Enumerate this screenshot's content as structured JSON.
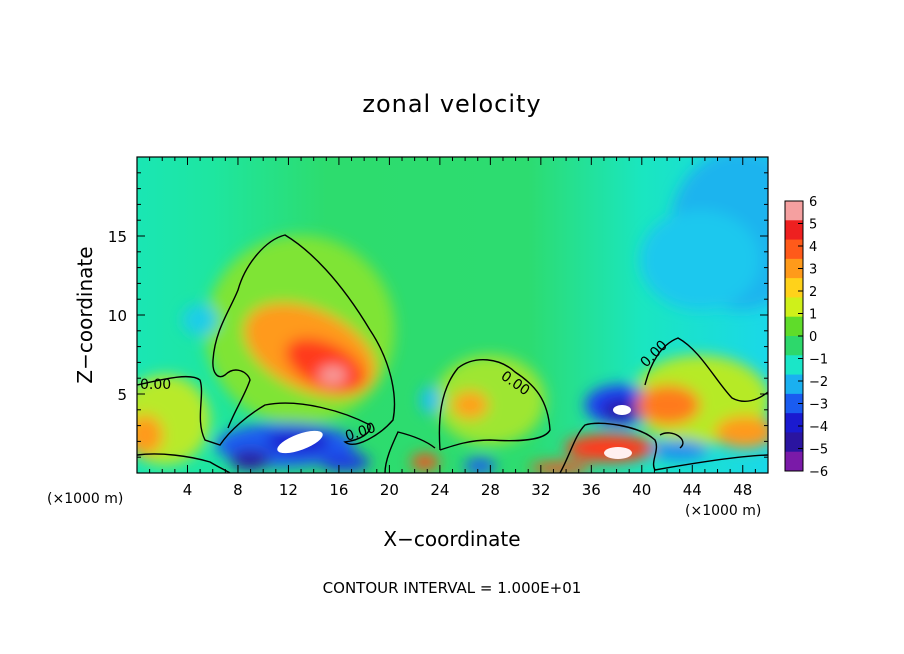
{
  "chart_data": {
    "type": "heatmap",
    "title": "zonal velocity",
    "xlabel": "X−coordinate",
    "ylabel": "Z−coordinate",
    "x_unit_left": "(×1000 m)",
    "x_unit_right": "(×1000 m)",
    "footer": "CONTOUR INTERVAL = 1.000E+01",
    "xlim": [
      0,
      50
    ],
    "ylim": [
      0,
      20
    ],
    "x_ticks": [
      4,
      8,
      12,
      16,
      20,
      24,
      28,
      32,
      36,
      40,
      44,
      48
    ],
    "y_ticks": [
      5,
      10,
      15
    ],
    "colorbar": {
      "ticks": [
        "6",
        "5",
        "4",
        "3",
        "2",
        "1",
        "0",
        "−1",
        "−2",
        "−3",
        "−4",
        "−5",
        "−6"
      ],
      "colors": [
        "#f5a0a0",
        "#ee2020",
        "#ff5a1a",
        "#ff9a1a",
        "#ffd21a",
        "#cff01a",
        "#5fdc2a",
        "#2dd86b",
        "#1ae6c8",
        "#1ab0f0",
        "#1a5cf0",
        "#1a1ad0",
        "#2a14a0",
        "#7a1aa8"
      ]
    },
    "contour_labels": [
      "0.00",
      "0.00",
      "0.00",
      "0.00"
    ],
    "features": [
      {
        "x": 14.5,
        "z": 7.5,
        "value": 5.5
      },
      {
        "x": 12.5,
        "z": 9.5,
        "value": 3.0
      },
      {
        "x": 12.5,
        "z": 2.0,
        "value": -6.5
      },
      {
        "x": 9.5,
        "z": 1.5,
        "value": -4.5
      },
      {
        "x": 17.5,
        "z": 1.0,
        "value": -3.5
      },
      {
        "x": 26.0,
        "z": 4.2,
        "value": 3.0
      },
      {
        "x": 27.0,
        "z": 6.0,
        "value": 1.0
      },
      {
        "x": 38.5,
        "z": 3.8,
        "value": -6.5
      },
      {
        "x": 38.5,
        "z": 1.5,
        "value": 6.0
      },
      {
        "x": 36.5,
        "z": 2.8,
        "value": 5.0
      },
      {
        "x": 43.0,
        "z": 4.5,
        "value": 3.5
      },
      {
        "x": 47.5,
        "z": 2.8,
        "value": 3.0
      },
      {
        "x": 22.5,
        "z": 0.6,
        "value": 4.0
      },
      {
        "x": 42.0,
        "z": 1.5,
        "value": -3.0
      },
      {
        "x": 24.5,
        "z": 4.8,
        "value": -2.0
      },
      {
        "x": 5.0,
        "z": 9.0,
        "value": -2.0
      },
      {
        "x": 48.0,
        "z": 17.0,
        "value": -2.6
      },
      {
        "x": 46.0,
        "z": 13.0,
        "value": -2.2
      },
      {
        "x": 2.0,
        "z": 2.8,
        "value": 3.5
      },
      {
        "x": 3.0,
        "z": 4.2,
        "value": 1.0
      }
    ]
  }
}
